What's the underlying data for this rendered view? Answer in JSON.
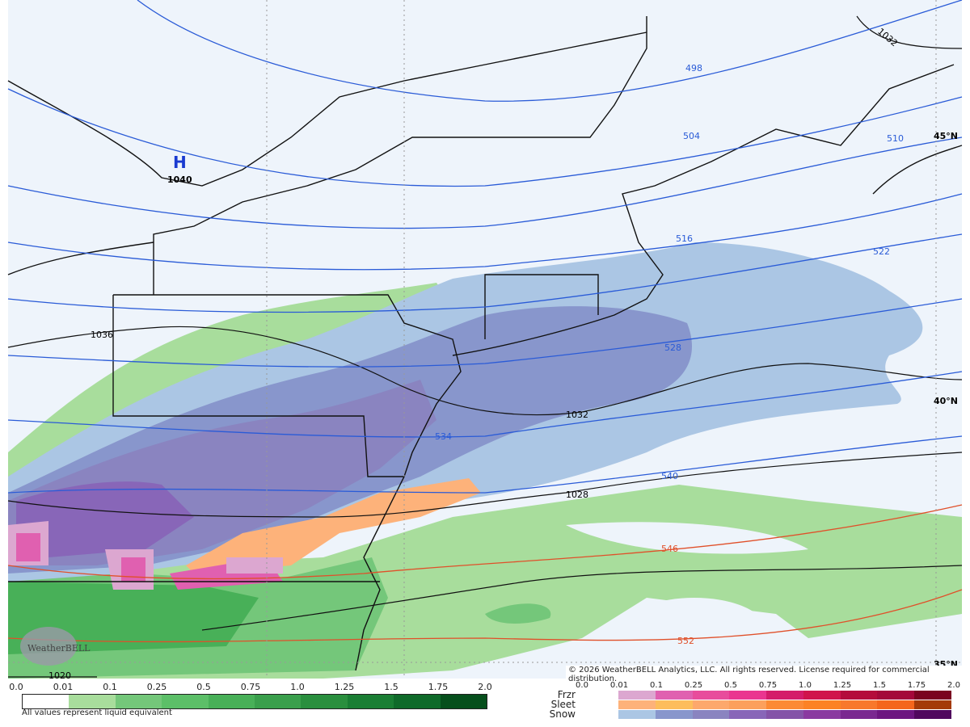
{
  "map": {
    "pressure_high": {
      "symbol": "H",
      "value": "1040"
    },
    "isobar_labels": [
      "1036",
      "1032",
      "1028",
      "1020",
      "1032"
    ],
    "height_labels": [
      "498",
      "504",
      "510",
      "516",
      "522",
      "528",
      "534",
      "540",
      "546",
      "552"
    ],
    "latitude_labels": [
      "45°N",
      "40°N",
      "35°N"
    ],
    "logo_text": "WeatherBELL",
    "colors": {
      "background": "#eef4fb",
      "height_contour": "#2a5bd7",
      "warm_height_contour": "#e0502a",
      "isobar": "#111111"
    }
  },
  "copyright": "© 2026 WeatherBELL Analytics, LLC. All rights reserved. License required for commercial distribution.",
  "rain_legend": {
    "ticks": [
      "0.0",
      "0.01",
      "0.1",
      "0.25",
      "0.5",
      "0.75",
      "1.0",
      "1.25",
      "1.5",
      "1.75",
      "2.0"
    ],
    "colors": [
      "#ffffff",
      "#a8dd9c",
      "#74c77a",
      "#5cbf68",
      "#48b058",
      "#3a9f4c",
      "#2a8f3e",
      "#1a7e34",
      "#0f6a2a",
      "#064f1c"
    ],
    "note": "All values represent liquid equivalent"
  },
  "mix_legend": {
    "ticks": [
      "0.0",
      "0.01",
      "0.1",
      "0.25",
      "0.5",
      "0.75",
      "1.0",
      "1.25",
      "1.5",
      "1.75",
      "2.0"
    ],
    "rows": [
      {
        "label": "Frzr",
        "colors": [
          "#dca7d0",
          "#e060b0",
          "#e84c9c",
          "#ea3590",
          "#d41c6a",
          "#d0144c",
          "#b40c3c",
          "#a4083a",
          "#7a0420"
        ]
      },
      {
        "label": "Sleet",
        "colors": [
          "#fdb27a",
          "#fdbd5c",
          "#fda86c",
          "#fca05c",
          "#fc8a34",
          "#fc8224",
          "#f8782c",
          "#f4661c",
          "#a43a08"
        ]
      },
      {
        "label": "Snow",
        "colors": [
          "#abc6e4",
          "#8896cc",
          "#8a84c0",
          "#8866b8",
          "#8454a8",
          "#8a3aa0",
          "#7a2890",
          "#6c1680",
          "#50085e"
        ]
      }
    ]
  }
}
